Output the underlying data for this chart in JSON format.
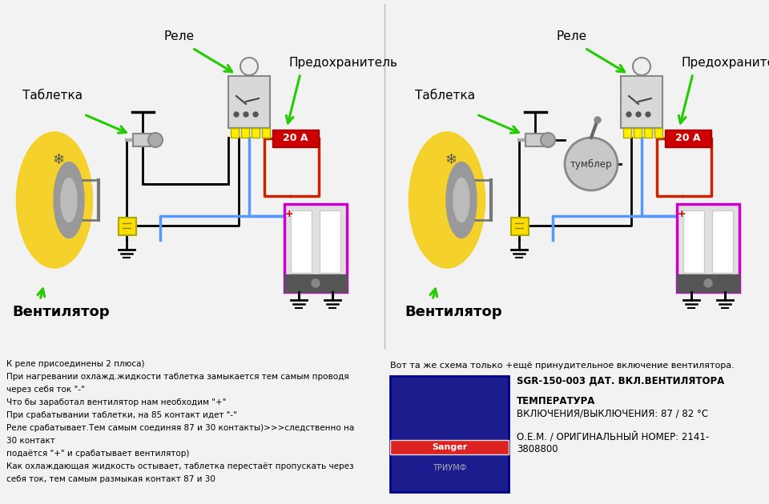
{
  "bg_color": "#f2f2f2",
  "left_labels": {
    "tabletka": "Таблетка",
    "rele": "Реле",
    "predohranitel": "Предохранитель",
    "ventilyator": "Вентилятор",
    "fuse_label": "20 А"
  },
  "right_labels": {
    "tabletka": "Таблетка",
    "rele": "Реле",
    "predohranitel": "Предохранитель",
    "ventilyator": "Вентилятор",
    "tumbler": "тумблер",
    "fuse_label": "20 А"
  },
  "bottom_left_text": [
    "К реле присоединены 2 плюса)",
    "При нагревании охлажд.жидкости таблетка замыкается тем самым проводя",
    "через себя ток \"-\"",
    "Что бы заработал вентилятор нам необходим \"+\"",
    "При срабатывании таблетки, на 85 контакт идет \"-\"",
    "Реле срабатывает.Тем самым соединяя 87 и 30 контакты)>>>следственно на",
    "30 контакт",
    "подаётся \"+\" и срабатывает вентилятор)",
    "Как охлаждающая жидкость остывает, таблетка перестаёт пропускать через",
    "себя ток, тем самым размыкая контакт 87 и 30"
  ],
  "bottom_right_text_intro": "Вот та же схема только +ещё принудительное включение вентилятора.",
  "bottom_right_line1": "SGR-150-003 ДАТ. ВКЛ.ВЕНТИЛЯТОРА",
  "bottom_right_line2": "ТЕМПЕРАТУРА",
  "bottom_right_line3": "ВКЛЮЧЕНИЯ/ВЫКЛЮЧЕНИЯ: 87 / 82 °С",
  "bottom_right_line4": "О.Е.М. / ОРИГИНАЛЬНЫЙ НОМЕР: 2141-",
  "bottom_right_line5": "3808800"
}
